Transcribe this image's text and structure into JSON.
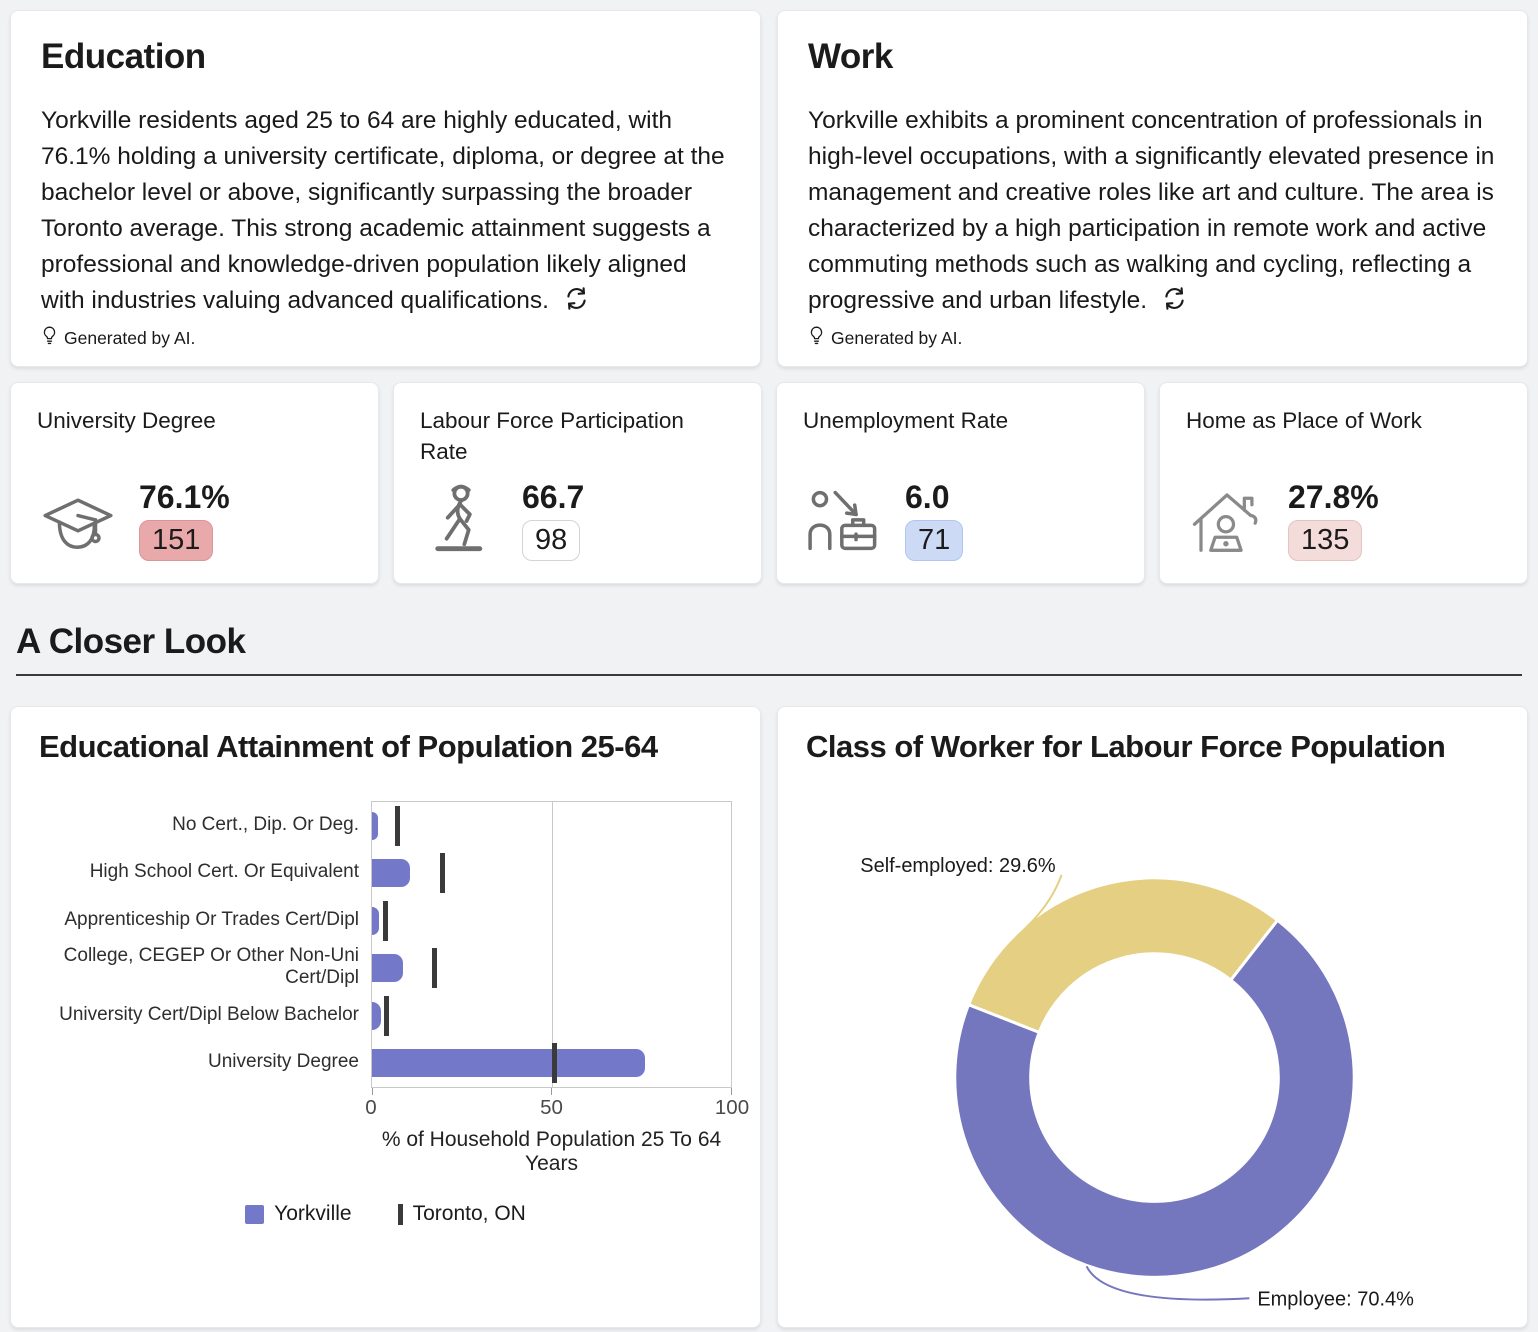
{
  "insights": {
    "education": {
      "title": "Education",
      "body": "Yorkville residents aged 25 to 64 are highly educated, with 76.1% holding a university certificate, diploma, or degree at the bachelor level or above, significantly surpassing the broader Toronto average. This strong academic attainment suggests a professional and knowledge-driven population likely aligned with industries valuing advanced qualifications.",
      "footer": "Generated by AI."
    },
    "work": {
      "title": "Work",
      "body": "Yorkville exhibits a prominent concentration of professionals in high-level occupations, with a significantly elevated presence in management and creative roles like art and culture. The area is characterized by a high participation in remote work and active commuting methods such as walking and cycling, reflecting a progressive and urban lifestyle.",
      "footer": "Generated by AI."
    }
  },
  "stats": [
    {
      "title": "University Degree",
      "icon": "graduation-cap",
      "value": "76.1%",
      "badge": "151",
      "badge_bg": "#e9a9ab",
      "badge_border": "#d9969a"
    },
    {
      "title": "Labour Force Participation Rate",
      "icon": "walking-person",
      "value": "66.7",
      "badge": "98",
      "badge_bg": "#ffffff",
      "badge_border": "#d4d4d4"
    },
    {
      "title": "Unemployment Rate",
      "icon": "unemployed-person",
      "value": "6.0",
      "badge": "71",
      "badge_bg": "#ccdaf5",
      "badge_border": "#b3c5ee"
    },
    {
      "title": "Home as Place of Work",
      "icon": "home-office",
      "value": "27.8%",
      "badge": "135",
      "badge_bg": "#f4dcda",
      "badge_border": "#e5c3c0"
    }
  ],
  "section": {
    "title": "A Closer Look"
  },
  "chart_data": [
    {
      "type": "bar",
      "orientation": "horizontal",
      "title": "Educational Attainment of Population 25-64",
      "categories": [
        "No Cert., Dip. Or Deg.",
        "High School Cert. Or Equivalent",
        "Apprenticeship Or Trades Cert/Dipl",
        "College, CEGEP Or Other Non-Uni Cert/Dipl",
        "University Cert/Dipl Below Bachelor",
        "University Degree"
      ],
      "series": [
        {
          "name": "Yorkville",
          "style": "bar",
          "color": "#7478c8",
          "values": [
            1.6,
            10.5,
            1.9,
            8.7,
            2.4,
            76.1
          ]
        },
        {
          "name": "Toronto, ON",
          "style": "marker",
          "color": "#3a3a3a",
          "values": [
            7.0,
            19.5,
            3.8,
            17.5,
            3.9,
            50.8
          ]
        }
      ],
      "xlabel": "% of Household Population 25 To 64 Years",
      "xlim": [
        0,
        100
      ],
      "xticks": [
        0,
        50,
        100
      ],
      "grid": true,
      "legend_position": "bottom-center"
    },
    {
      "type": "pie",
      "subtype": "donut",
      "title": "Class of Worker for Labour Force Population",
      "slices": [
        {
          "label": "Employee",
          "value": 70.4,
          "color": "#7477be",
          "label_text": "Employee: 70.4%"
        },
        {
          "label": "Self-employed",
          "value": 29.6,
          "color": "#e5cf82",
          "label_text": "Self-employed: 29.6%"
        }
      ],
      "start_angle_deg": 38,
      "legend_position": "none"
    }
  ]
}
